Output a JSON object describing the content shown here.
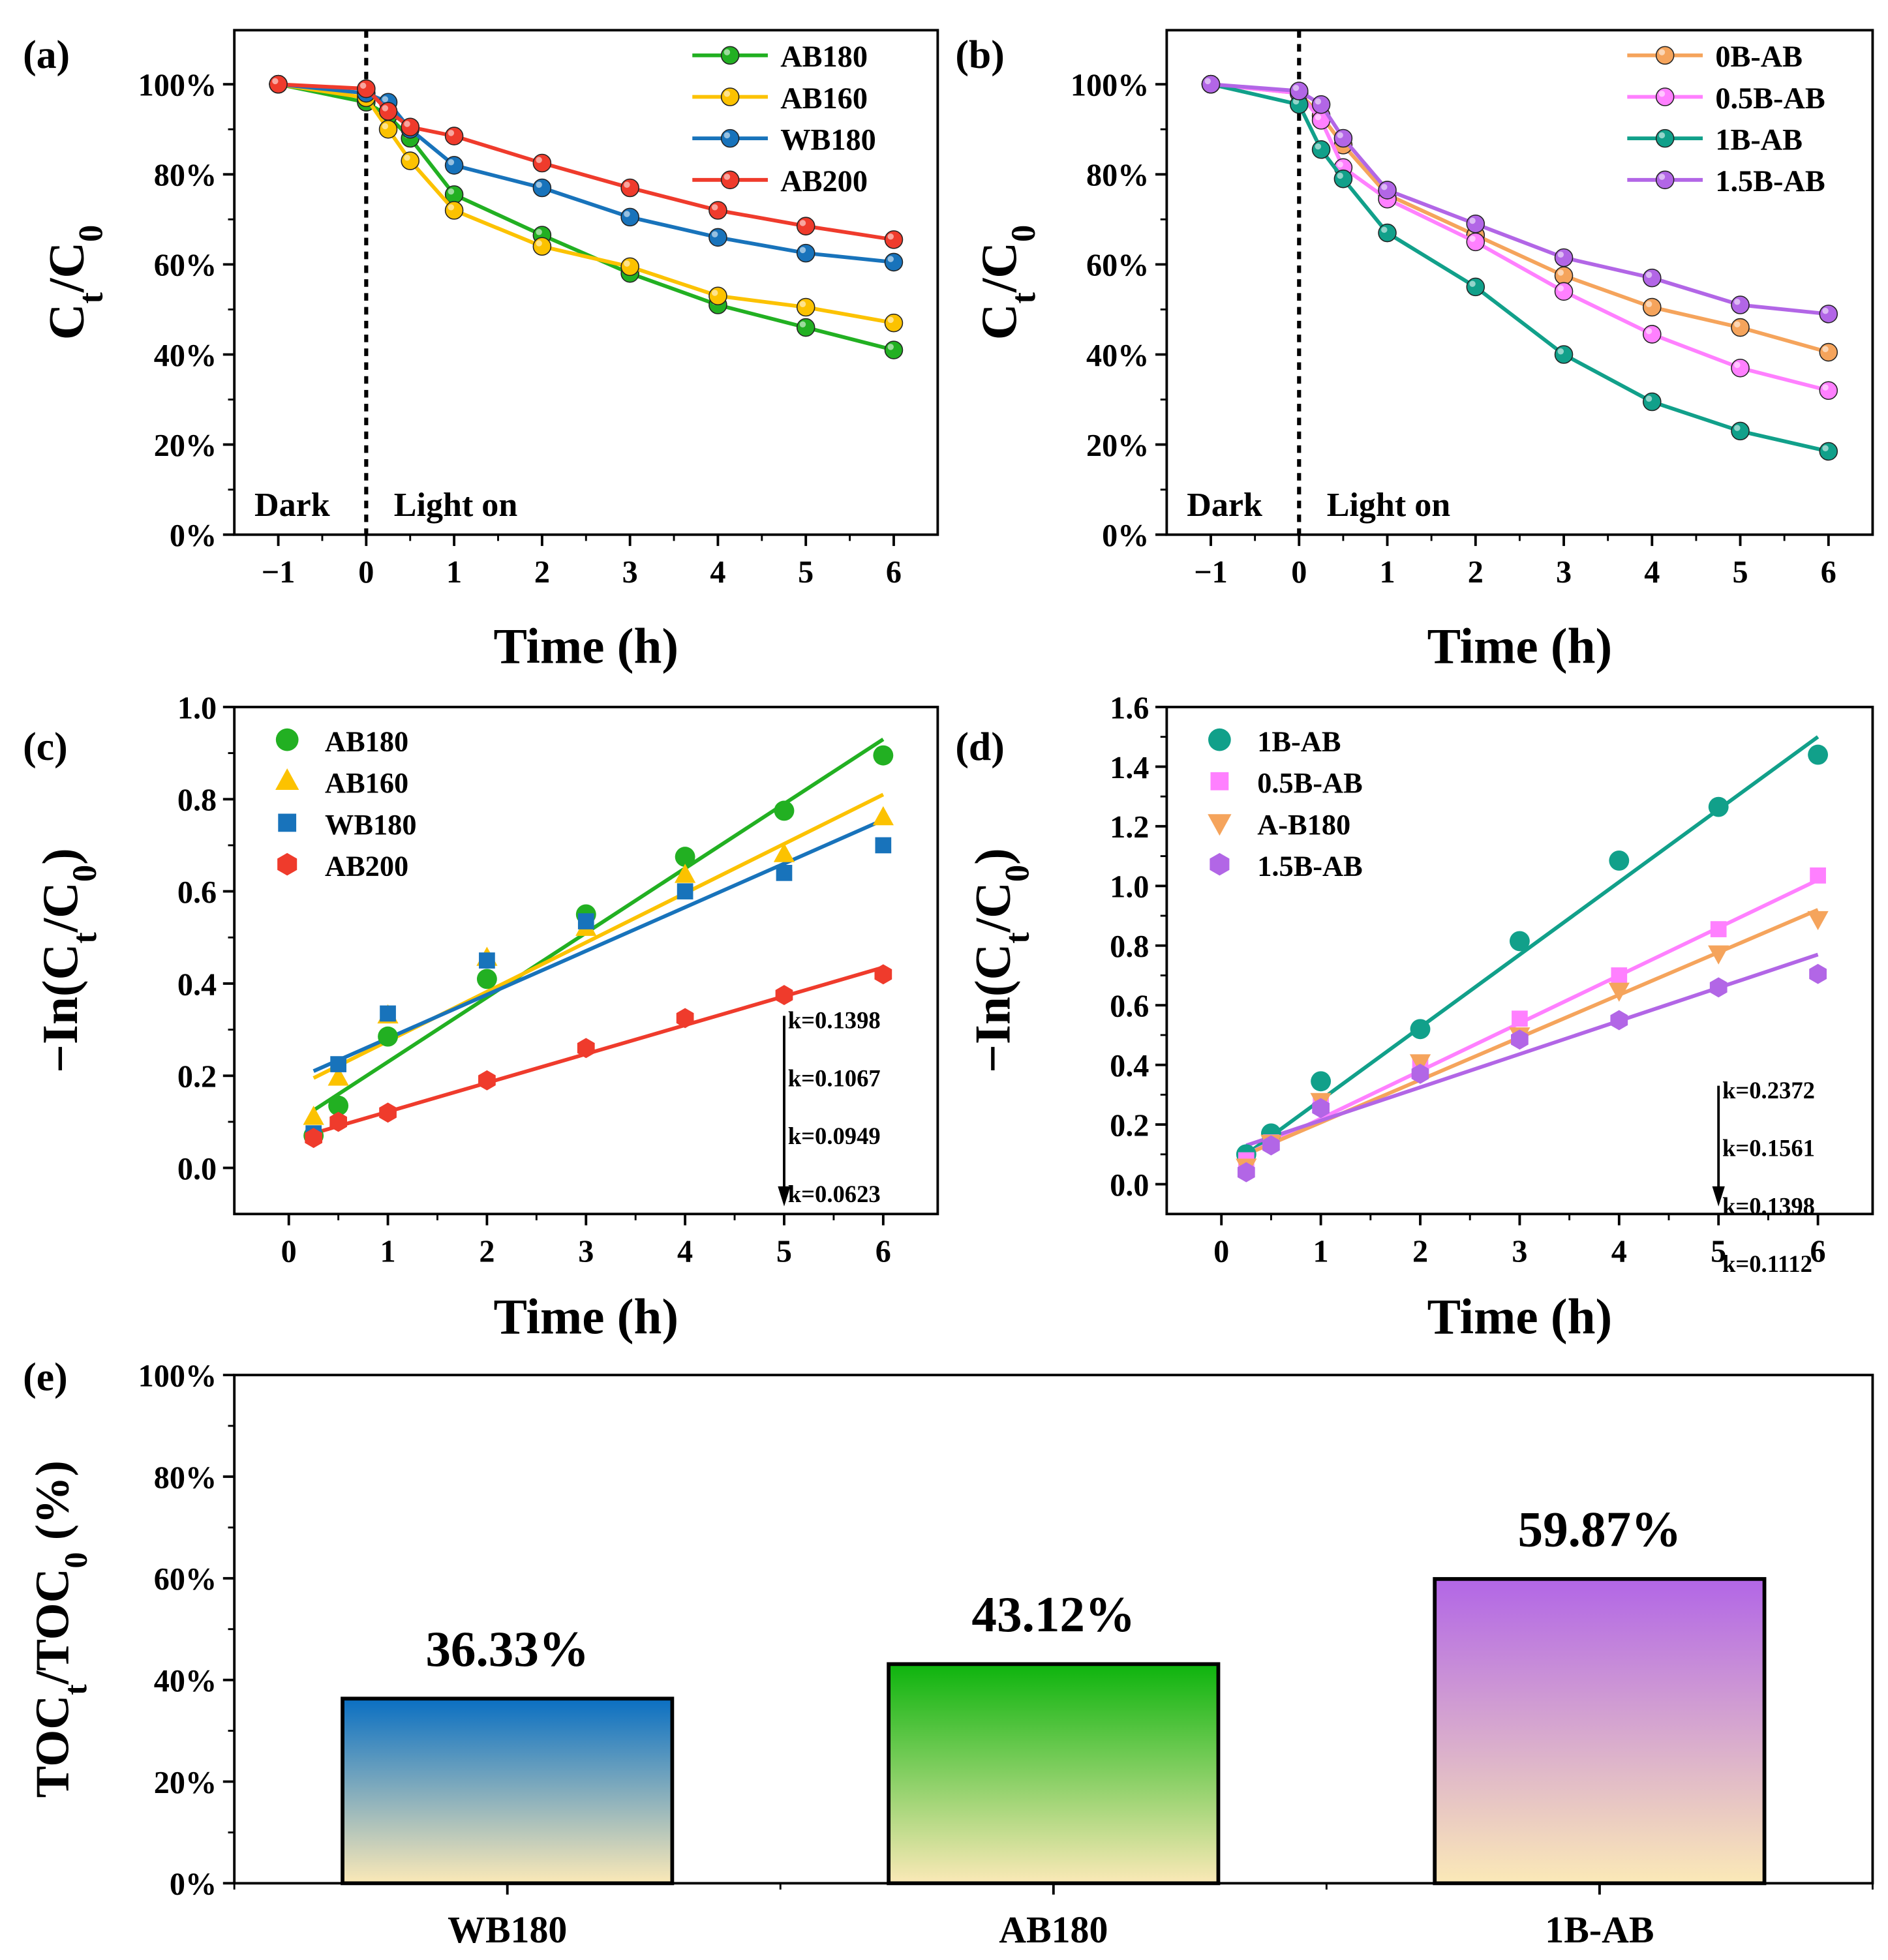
{
  "colors": {
    "green": "#22b022",
    "yellow": "#fcc200",
    "blue": "#1873bb",
    "red": "#ef3b2c",
    "orange": "#f5a45c",
    "pink": "#ff80ff",
    "teal": "#11a08a",
    "purple": "#b266e6",
    "bar_base": "#fbe9b7"
  },
  "chart_data": [
    {
      "id": "a",
      "panel_label": "(a)",
      "type": "line",
      "xlabel": "Time (h)",
      "ylabel": "Ct/C0",
      "xlim": [
        -1.5,
        6.5
      ],
      "ylim": [
        0,
        1.12
      ],
      "xticks": [
        -1,
        0,
        1,
        2,
        3,
        4,
        5,
        6
      ],
      "xtick_labels": [
        "−1",
        "0",
        "1",
        "2",
        "3",
        "4",
        "5",
        "6"
      ],
      "yticks": [
        0,
        0.2,
        0.4,
        0.6,
        0.8,
        1.0
      ],
      "ytick_labels": [
        "0%",
        "20%",
        "40%",
        "60%",
        "80%",
        "100%"
      ],
      "dark_label": "Dark",
      "light_label": "Light on",
      "series": [
        {
          "name": "AB180",
          "color": "#22b022",
          "x": [
            -1,
            0,
            0.25,
            0.5,
            1,
            2,
            3,
            4,
            5,
            6
          ],
          "y": [
            1.0,
            0.96,
            0.93,
            0.88,
            0.755,
            0.665,
            0.58,
            0.51,
            0.46,
            0.41
          ]
        },
        {
          "name": "AB160",
          "color": "#fcc200",
          "x": [
            -1,
            0,
            0.25,
            0.5,
            1,
            2,
            3,
            4,
            5,
            6
          ],
          "y": [
            1.0,
            0.97,
            0.9,
            0.83,
            0.72,
            0.64,
            0.595,
            0.53,
            0.505,
            0.47
          ]
        },
        {
          "name": "WB180",
          "color": "#1873bb",
          "x": [
            -1,
            0,
            0.25,
            0.5,
            1,
            2,
            3,
            4,
            5,
            6
          ],
          "y": [
            1.0,
            0.98,
            0.96,
            0.9,
            0.82,
            0.77,
            0.705,
            0.66,
            0.625,
            0.605
          ]
        },
        {
          "name": "AB200",
          "color": "#ef3b2c",
          "x": [
            -1,
            0,
            0.25,
            0.5,
            1,
            2,
            3,
            4,
            5,
            6
          ],
          "y": [
            1.0,
            0.99,
            0.94,
            0.905,
            0.885,
            0.825,
            0.77,
            0.72,
            0.685,
            0.655
          ]
        }
      ]
    },
    {
      "id": "b",
      "panel_label": "(b)",
      "type": "line",
      "xlabel": "Time (h)",
      "ylabel": "Ct/C0",
      "xlim": [
        -1.5,
        6.5
      ],
      "ylim": [
        0,
        1.12
      ],
      "xticks": [
        -1,
        0,
        1,
        2,
        3,
        4,
        5,
        6
      ],
      "xtick_labels": [
        "−1",
        "0",
        "1",
        "2",
        "3",
        "4",
        "5",
        "6"
      ],
      "yticks": [
        0,
        0.2,
        0.4,
        0.6,
        0.8,
        1.0
      ],
      "ytick_labels": [
        "0%",
        "20%",
        "40%",
        "60%",
        "80%",
        "100%"
      ],
      "dark_label": "Dark",
      "light_label": "Light on",
      "series": [
        {
          "name": "0B-AB",
          "color": "#f5a45c",
          "x": [
            -1,
            0,
            0.25,
            0.5,
            1,
            2,
            3,
            4,
            5,
            6
          ],
          "y": [
            1.0,
            0.98,
            0.93,
            0.865,
            0.755,
            0.665,
            0.575,
            0.505,
            0.46,
            0.405
          ]
        },
        {
          "name": "0.5B-AB",
          "color": "#ff80ff",
          "x": [
            -1,
            0,
            0.25,
            0.5,
            1,
            2,
            3,
            4,
            5,
            6
          ],
          "y": [
            1.0,
            0.98,
            0.92,
            0.815,
            0.745,
            0.65,
            0.54,
            0.445,
            0.37,
            0.32
          ]
        },
        {
          "name": "1B-AB",
          "color": "#11a08a",
          "x": [
            -1,
            0,
            0.25,
            0.5,
            1,
            2,
            3,
            4,
            5,
            6
          ],
          "y": [
            1.0,
            0.955,
            0.855,
            0.79,
            0.67,
            0.55,
            0.4,
            0.295,
            0.23,
            0.185
          ]
        },
        {
          "name": "1.5B-AB",
          "color": "#b266e6",
          "x": [
            -1,
            0,
            0.25,
            0.5,
            1,
            2,
            3,
            4,
            5,
            6
          ],
          "y": [
            1.0,
            0.985,
            0.955,
            0.88,
            0.765,
            0.69,
            0.615,
            0.57,
            0.51,
            0.49
          ]
        }
      ]
    },
    {
      "id": "c",
      "panel_label": "(c)",
      "type": "scatter",
      "xlabel": "Time (h)",
      "ylabel": "−In(Ct/C0)",
      "xlim": [
        -0.55,
        6.55
      ],
      "ylim": [
        -0.1,
        1.0
      ],
      "xticks": [
        0,
        1,
        2,
        3,
        4,
        5,
        6
      ],
      "xtick_labels": [
        "0",
        "1",
        "2",
        "3",
        "4",
        "5",
        "6"
      ],
      "yticks": [
        0,
        0.2,
        0.4,
        0.6,
        0.8,
        1.0
      ],
      "ytick_labels": [
        "0.0",
        "0.2",
        "0.4",
        "0.6",
        "0.8",
        "1.0"
      ],
      "k_labels": [
        "k=0.1398",
        "k=0.1067",
        "k=0.0949",
        "k=0.0623"
      ],
      "series": [
        {
          "name": "AB180",
          "marker": "circle",
          "color": "#22b022",
          "x": [
            0.25,
            0.5,
            1,
            2,
            3,
            4,
            5,
            6
          ],
          "y": [
            0.07,
            0.135,
            0.285,
            0.41,
            0.55,
            0.675,
            0.775,
            0.895
          ],
          "fit": [
            0.25,
            0.125,
            6,
            0.93
          ]
        },
        {
          "name": "AB160",
          "marker": "triangle",
          "color": "#fcc200",
          "x": [
            0.25,
            0.5,
            1,
            2,
            3,
            4,
            5,
            6
          ],
          "y": [
            0.11,
            0.195,
            0.33,
            0.455,
            0.52,
            0.635,
            0.68,
            0.76
          ],
          "fit": [
            0.25,
            0.195,
            6,
            0.81
          ]
        },
        {
          "name": "WB180",
          "marker": "square",
          "color": "#1873bb",
          "x": [
            0.25,
            0.5,
            1,
            2,
            3,
            4,
            5,
            6
          ],
          "y": [
            0.075,
            0.225,
            0.335,
            0.45,
            0.535,
            0.6,
            0.64,
            0.7
          ],
          "fit": [
            0.25,
            0.21,
            6,
            0.755
          ]
        },
        {
          "name": "AB200",
          "marker": "hexagon",
          "color": "#ef3b2c",
          "x": [
            0.25,
            0.5,
            1,
            2,
            3,
            4,
            5,
            6
          ],
          "y": [
            0.065,
            0.1,
            0.12,
            0.19,
            0.26,
            0.325,
            0.375,
            0.42
          ],
          "fit": [
            0.25,
            0.075,
            6,
            0.435
          ]
        }
      ]
    },
    {
      "id": "d",
      "panel_label": "(d)",
      "type": "scatter",
      "xlabel": "Time (h)",
      "ylabel": "−In(Ct/C0)",
      "xlim": [
        -0.55,
        6.55
      ],
      "ylim": [
        -0.1,
        1.6
      ],
      "xticks": [
        0,
        1,
        2,
        3,
        4,
        5,
        6
      ],
      "xtick_labels": [
        "0",
        "1",
        "2",
        "3",
        "4",
        "5",
        "6"
      ],
      "yticks": [
        0,
        0.2,
        0.4,
        0.6,
        0.8,
        1.0,
        1.2,
        1.4,
        1.6
      ],
      "ytick_labels": [
        "0.0",
        "0.2",
        "0.4",
        "0.6",
        "0.8",
        "1.0",
        "1.2",
        "1.4",
        "1.6"
      ],
      "k_labels": [
        "k=0.2372",
        "k=0.1561",
        "k=0.1398",
        "k=0.1112"
      ],
      "series": [
        {
          "name": "1B-AB",
          "marker": "circle",
          "color": "#11a08a",
          "x": [
            0.25,
            0.5,
            1,
            2,
            3,
            4,
            5,
            6
          ],
          "y": [
            0.1,
            0.17,
            0.345,
            0.52,
            0.815,
            1.085,
            1.265,
            1.44
          ],
          "fit": [
            0.25,
            0.1,
            6,
            1.5
          ]
        },
        {
          "name": "0.5B-AB",
          "marker": "square",
          "color": "#ff80ff",
          "x": [
            0.25,
            0.5,
            1,
            2,
            3,
            4,
            5,
            6
          ],
          "y": [
            0.08,
            0.14,
            0.27,
            0.4,
            0.555,
            0.7,
            0.855,
            1.035
          ],
          "fit": [
            0.25,
            0.1,
            6,
            1.02
          ]
        },
        {
          "name": "A-B180",
          "marker": "triangle-down",
          "color": "#f5a45c",
          "x": [
            0.25,
            0.5,
            1,
            2,
            3,
            4,
            5,
            6
          ],
          "y": [
            0.06,
            0.14,
            0.28,
            0.41,
            0.5,
            0.65,
            0.775,
            0.89
          ],
          "fit": [
            0.25,
            0.1,
            6,
            0.92
          ]
        },
        {
          "name": "1.5B-AB",
          "marker": "hexagon",
          "color": "#b266e6",
          "x": [
            0.25,
            0.5,
            1,
            2,
            3,
            4,
            5,
            6
          ],
          "y": [
            0.04,
            0.13,
            0.255,
            0.37,
            0.485,
            0.55,
            0.66,
            0.705
          ],
          "fit": [
            0.25,
            0.13,
            6,
            0.77
          ]
        }
      ]
    },
    {
      "id": "e",
      "panel_label": "(e)",
      "type": "bar",
      "ylabel": "TOCt/TOC0 (%)",
      "ylim": [
        0,
        1.0
      ],
      "yticks": [
        0,
        0.2,
        0.4,
        0.6,
        0.8,
        1.0
      ],
      "ytick_labels": [
        "0%",
        "20%",
        "40%",
        "60%",
        "80%",
        "100%"
      ],
      "categories": [
        "WB180",
        "AB180",
        "1B-AB"
      ],
      "values": [
        0.3633,
        0.4312,
        0.5987
      ],
      "value_labels": [
        "36.33%",
        "43.12%",
        "59.87%"
      ],
      "bar_colors": [
        "#0a6fc2",
        "#0db40d",
        "#b266e6"
      ]
    }
  ]
}
